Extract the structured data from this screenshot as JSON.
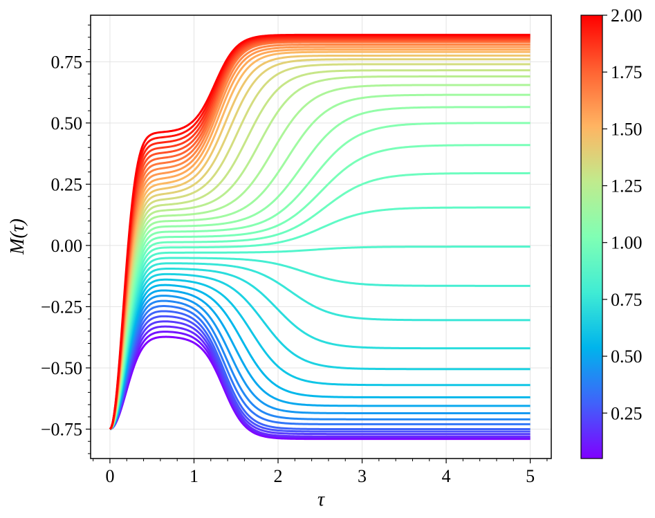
{
  "chart_data": {
    "type": "line",
    "xlabel": "τ",
    "ylabel": "M(τ)",
    "xlim": [
      -0.23,
      5.25
    ],
    "ylim": [
      -0.87,
      0.94
    ],
    "x_ticks": [
      0,
      1,
      2,
      3,
      4,
      5
    ],
    "x_tick_labels": [
      "0",
      "1",
      "2",
      "3",
      "4",
      "5"
    ],
    "y_ticks": [
      -0.75,
      -0.5,
      -0.25,
      0.0,
      0.25,
      0.5,
      0.75
    ],
    "y_tick_labels": [
      "−0.75",
      "−0.50",
      "−0.25",
      "0.00",
      "0.25",
      "0.50",
      "0.75"
    ],
    "grid": true,
    "colormap": "rainbow",
    "colorbar": {
      "range": [
        0.05,
        2.0
      ],
      "ticks": [
        0.25,
        0.5,
        0.75,
        1.0,
        1.25,
        1.5,
        1.75,
        2.0
      ],
      "tick_labels": [
        "0.25",
        "0.50",
        "0.75",
        "1.00",
        "1.25",
        "1.50",
        "1.75",
        "2.00"
      ]
    },
    "series_parameter": "color value from 0.05 to 2.00 in steps of 0.05 (40 curves)",
    "series_final_values": [
      -0.79,
      -0.785,
      -0.78,
      -0.77,
      -0.76,
      -0.75,
      -0.73,
      -0.71,
      -0.685,
      -0.655,
      -0.62,
      -0.57,
      -0.505,
      -0.42,
      -0.305,
      -0.165,
      -0.005,
      0.155,
      0.295,
      0.41,
      0.5,
      0.565,
      0.615,
      0.655,
      0.69,
      0.715,
      0.74,
      0.76,
      0.775,
      0.79,
      0.8,
      0.81,
      0.82,
      0.83,
      0.835,
      0.84,
      0.845,
      0.85,
      0.855,
      0.86
    ],
    "series_start_value": -0.75,
    "x_range": [
      0,
      5
    ]
  }
}
